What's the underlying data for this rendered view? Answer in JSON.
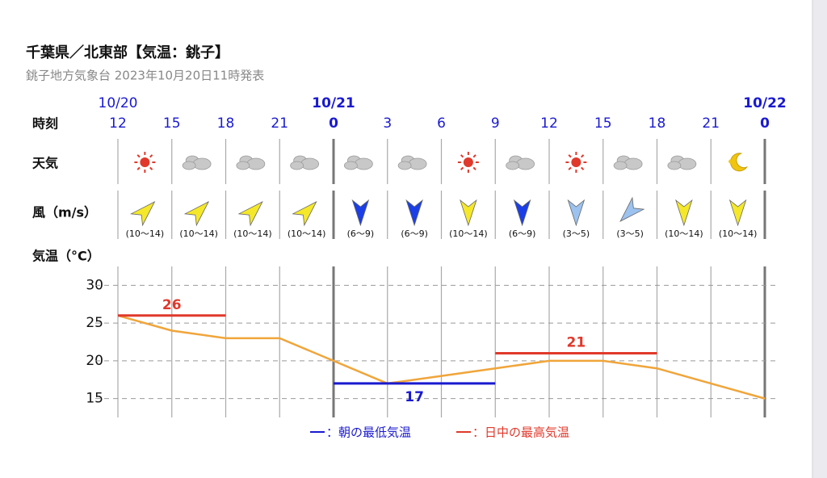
{
  "header": {
    "title": "千葉県／北東部【気温：銚子】",
    "subtitle": "銚子地方気象台 2023年10月20日11時発表"
  },
  "row_labels": {
    "time": "時刻",
    "weather": "天気",
    "wind": "風（m/s）",
    "temp": "気温（°C）"
  },
  "dates": [
    "10/20",
    null,
    null,
    null,
    "10/21",
    null,
    null,
    null,
    null,
    null,
    null,
    null,
    "10/22"
  ],
  "wind": [
    "(10〜14)",
    "(10〜14)",
    "(10〜14)",
    "(10〜14)",
    "(6〜9)",
    "(6〜9)",
    "(10〜14)",
    "(6〜9)",
    "(3〜5)",
    "(3〜5)",
    "(10〜14)",
    "(10〜14)"
  ],
  "chart_data": {
    "type": "line",
    "categories": [
      "12",
      "15",
      "18",
      "21",
      "0",
      "3",
      "6",
      "9",
      "12",
      "15",
      "18",
      "21",
      "0"
    ],
    "series": [
      {
        "color": "#f0a53a",
        "values": [
          26,
          24,
          23,
          23,
          20,
          17,
          18,
          19,
          20,
          20,
          19,
          17,
          15
        ]
      },
      {
        "name": "：朝の最低気温",
        "color": "#1a1ad0",
        "values": [
          null,
          null,
          null,
          null,
          17,
          17,
          17,
          17,
          null,
          null,
          null,
          null,
          null
        ]
      },
      {
        "name": "：日中の最高気温",
        "color": "#e0392b",
        "values": [
          26,
          26,
          26,
          null,
          null,
          null,
          null,
          21,
          21,
          21,
          21,
          null,
          null
        ]
      }
    ],
    "ylim": [
      12.5,
      32.5
    ],
    "yticks": [
      15,
      20,
      25,
      30
    ],
    "grid": true
  }
}
